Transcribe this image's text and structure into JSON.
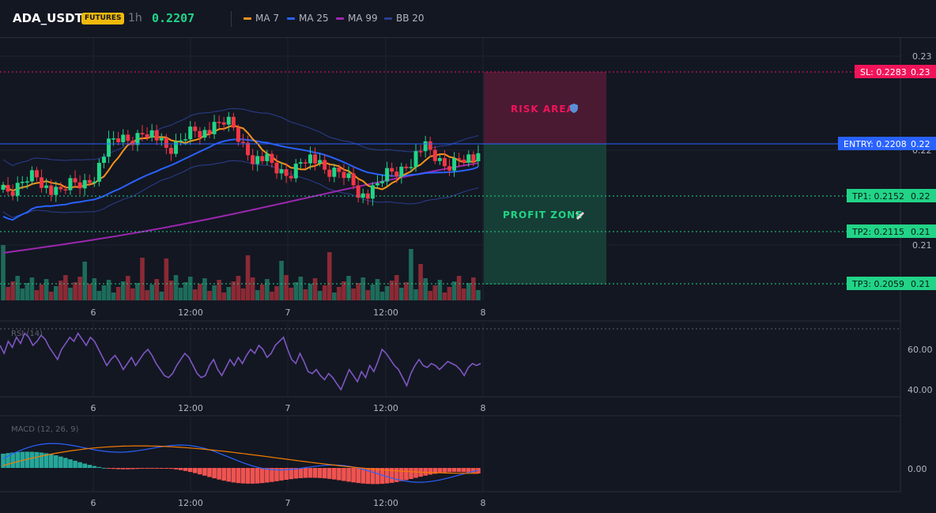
{
  "header": {
    "symbol": "ADA_USDT",
    "badge": "FUTURES",
    "interval": "1h",
    "price": "0.2207",
    "legend": [
      {
        "label": "MA 7",
        "color": "#f7931a"
      },
      {
        "label": "MA 25",
        "color": "#2962ff"
      },
      {
        "label": "MA 99",
        "color": "#9c27b0"
      },
      {
        "label": "BB 20",
        "color": "#2a3f8f"
      }
    ]
  },
  "colors": {
    "up": "#22d487",
    "down": "#f23645",
    "vol_up": "#1e6b5a",
    "vol_down": "#8b2a35",
    "entry": "#2962ff",
    "sl": "#f0145a",
    "tp": "#22d487",
    "ma7": "#f7931a",
    "ma25": "#2962ff",
    "ma99": "#9c27b0",
    "bb": "#2a3f8f",
    "rsi": "#7e57c2",
    "macd": "#2962ff",
    "signal": "#f57c00",
    "hist_up": "#26a69a",
    "hist_down": "#ef5350"
  },
  "price_axis": {
    "ticks": [
      "0.23",
      "0.22",
      "0.21"
    ]
  },
  "time_axis": {
    "labels": [
      "6",
      "12:00",
      "7",
      "12:00",
      "8"
    ]
  },
  "zones": {
    "risk_label": "RISK AREA",
    "profit_label": "PROFIT ZONE"
  },
  "levels": [
    {
      "id": "sl",
      "tag": "SL: 0.2283",
      "axis": "0.23",
      "price": 0.2283
    },
    {
      "id": "entry",
      "tag": "ENTRY: 0.2208",
      "axis": "0.22",
      "price": 0.2208
    },
    {
      "id": "tp1",
      "tag": "TP1: 0.2152",
      "axis": "0.22",
      "price": 0.2152
    },
    {
      "id": "tp2",
      "tag": "TP2: 0.2115",
      "axis": "0.21",
      "price": 0.2115
    },
    {
      "id": "tp3",
      "tag": "TP3: 0.2059",
      "axis": "0.21",
      "price": 0.2059
    }
  ],
  "rsi": {
    "label": "RSI (14)",
    "ticks": [
      "60.00",
      "40.00"
    ],
    "values": [
      62,
      58,
      64,
      61,
      66,
      63,
      68,
      66,
      62,
      64,
      67,
      65,
      61,
      58,
      55,
      60,
      63,
      66,
      64,
      68,
      65,
      62,
      66,
      64,
      60,
      56,
      52,
      55,
      57,
      54,
      50,
      53,
      56,
      52,
      55,
      58,
      60,
      57,
      53,
      50,
      47,
      46,
      48,
      52,
      55,
      58,
      56,
      52,
      48,
      46,
      47,
      52,
      55,
      50,
      47,
      51,
      55,
      52,
      56,
      53,
      57,
      60,
      58,
      62,
      60,
      56,
      58,
      62,
      64,
      66,
      60,
      55,
      53,
      58,
      54,
      49,
      48,
      50,
      47,
      45,
      48,
      46,
      43,
      40,
      45,
      50,
      47,
      44,
      49,
      46,
      52,
      49,
      54,
      60,
      58,
      55,
      52,
      50,
      46,
      42,
      48,
      52,
      55,
      52,
      51,
      53,
      52,
      50,
      52,
      54,
      53,
      52,
      50,
      47,
      51,
      53,
      52,
      53
    ]
  },
  "macd": {
    "label": "MACD (12, 26, 9)",
    "ticks": [
      "0.00"
    ]
  }
}
